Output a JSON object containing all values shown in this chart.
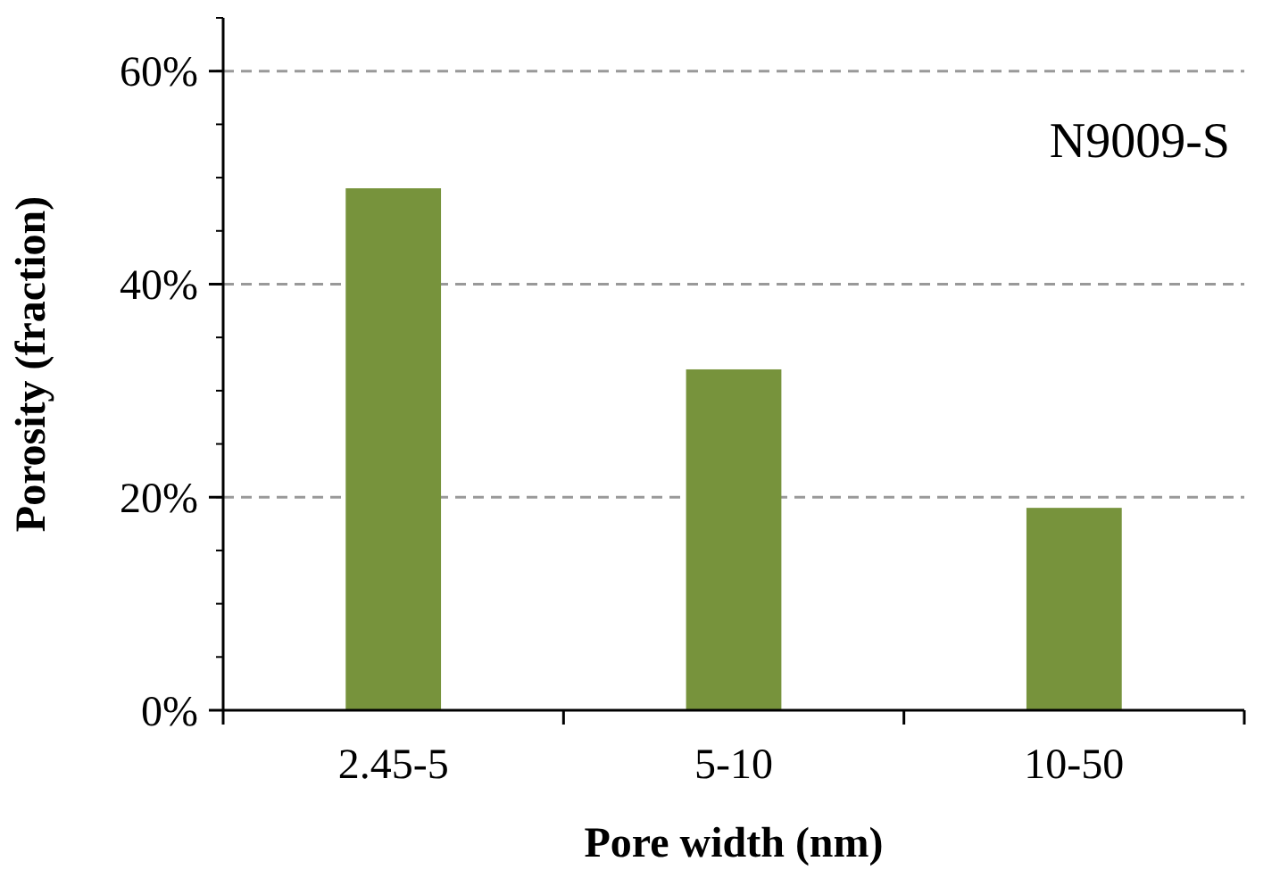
{
  "chart_data": {
    "type": "bar",
    "xlabel": "Pore width (nm)",
    "ylabel": "Porosity (fraction)",
    "categories": [
      "2.45-5",
      "5-10",
      "10-50"
    ],
    "values": [
      49,
      32,
      19
    ],
    "color": "#77933c",
    "ylim": [
      0,
      65
    ],
    "yticks": [
      {
        "value": 0,
        "label": "0%"
      },
      {
        "value": 20,
        "label": "20%"
      },
      {
        "value": 40,
        "label": "40%"
      },
      {
        "value": 60,
        "label": "60%"
      }
    ],
    "grid": "y",
    "annotations": [
      "N9009-S"
    ]
  }
}
